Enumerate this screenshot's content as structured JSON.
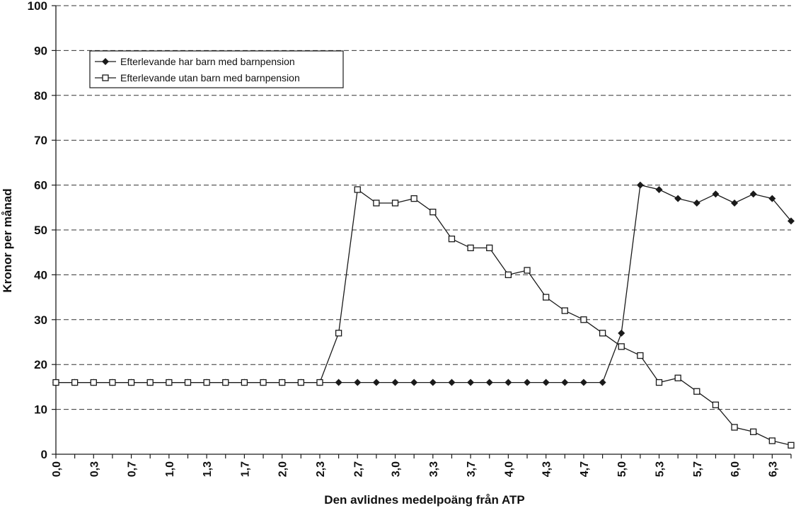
{
  "chart_data": {
    "type": "line",
    "title": "",
    "xlabel": "Den avlidnes medelpoäng från ATP",
    "ylabel": "Kronor per månad",
    "ylim": [
      0,
      100
    ],
    "yticks": [
      0,
      10,
      20,
      30,
      40,
      50,
      60,
      70,
      80,
      90,
      100
    ],
    "grid": "horizontal dashed",
    "legend_position": "top-left",
    "x": [
      "0,0",
      "0,2",
      "0,3",
      "0,5",
      "0,7",
      "0,8",
      "1,0",
      "1,2",
      "1,3",
      "1,5",
      "1,7",
      "1,8",
      "2,0",
      "2,2",
      "2,3",
      "2,5",
      "2,7",
      "2,8",
      "3,0",
      "3,2",
      "3,3",
      "3,5",
      "3,7",
      "3,8",
      "4,0",
      "4,2",
      "4,3",
      "4,5",
      "4,7",
      "4,8",
      "5,0",
      "5,2",
      "5,3",
      "5,5",
      "5,7",
      "5,8",
      "6,0",
      "6,2",
      "6,3",
      "6,5"
    ],
    "x_tick_labels": [
      "0,0",
      "",
      "0,3",
      "",
      "0,7",
      "",
      "1,0",
      "",
      "1,3",
      "",
      "1,7",
      "",
      "2,0",
      "",
      "2,3",
      "",
      "2,7",
      "",
      "3,0",
      "",
      "3,3",
      "",
      "3,7",
      "",
      "4,0",
      "",
      "4,3",
      "",
      "4,7",
      "",
      "5,0",
      "",
      "5,3",
      "",
      "5,7",
      "",
      "6,0",
      "",
      "6,3",
      ""
    ],
    "series": [
      {
        "name": "Efterlevande har barn med barnpension",
        "marker": "filled-diamond",
        "values": [
          16,
          16,
          16,
          16,
          16,
          16,
          16,
          16,
          16,
          16,
          16,
          16,
          16,
          16,
          16,
          16,
          16,
          16,
          16,
          16,
          16,
          16,
          16,
          16,
          16,
          16,
          16,
          16,
          16,
          16,
          27,
          60,
          59,
          57,
          56,
          58,
          56,
          58,
          57,
          52
        ]
      },
      {
        "name": "Efterlevande utan barn med barnpension",
        "marker": "open-square",
        "values": [
          16,
          16,
          16,
          16,
          16,
          16,
          16,
          16,
          16,
          16,
          16,
          16,
          16,
          16,
          16,
          27,
          59,
          56,
          56,
          57,
          54,
          48,
          46,
          46,
          40,
          41,
          35,
          32,
          30,
          27,
          24,
          22,
          16,
          17,
          14,
          11,
          6,
          5,
          3,
          2
        ]
      }
    ]
  },
  "colors": {
    "line": "#1a1a1a",
    "grid": "#333333",
    "background": "#ffffff"
  }
}
